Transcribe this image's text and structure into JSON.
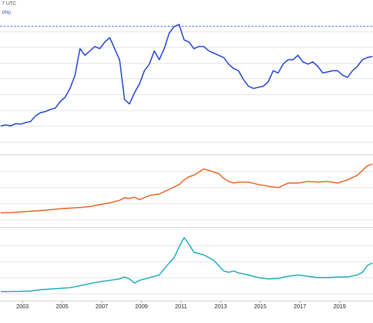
{
  "header": {
    "timestamp_fragment": "7 UTC",
    "ratio_fragment": "0%)"
  },
  "chart_data": [
    {
      "type": "line",
      "series": [
        {
          "color": "#1a3fd6",
          "x": [
            2002.0,
            2002.25,
            2002.5,
            2002.75,
            2003.0,
            2003.25,
            2003.5,
            2003.75,
            2004.0,
            2004.25,
            2004.5,
            2004.75,
            2005.0,
            2005.25,
            2005.5,
            2005.75,
            2006.0,
            2006.25,
            2006.5,
            2006.75,
            2007.0,
            2007.25,
            2007.5,
            2007.75,
            2008.0,
            2008.25,
            2008.5,
            2008.75,
            2009.0,
            2009.25,
            2009.5,
            2009.75,
            2010.0,
            2010.25,
            2010.5,
            2010.75,
            2011.0,
            2011.25,
            2011.5,
            2011.75,
            2012.0,
            2012.25,
            2012.5,
            2012.75,
            2013.0,
            2013.25,
            2013.5,
            2013.75,
            2014.0,
            2014.25,
            2014.5,
            2014.75,
            2015.0,
            2015.25,
            2015.5,
            2015.75,
            2016.0,
            2016.25,
            2016.5,
            2016.75,
            2017.0,
            2017.25,
            2017.5,
            2017.75,
            2018.0,
            2018.25,
            2018.5,
            2018.75,
            2019.0,
            2019.25,
            2019.5,
            2019.75,
            2020.0,
            2020.25,
            2020.5,
            2020.75
          ],
          "y": [
            10.0,
            10.5,
            10.0,
            11.0,
            10.8,
            11.5,
            12.0,
            14.5,
            16.0,
            16.5,
            17.5,
            18.0,
            21.0,
            23.0,
            27.0,
            33.0,
            45.0,
            42.0,
            44.0,
            46.0,
            45.0,
            48.0,
            50.0,
            45.0,
            40.0,
            22.0,
            20.0,
            25.0,
            29.0,
            35.0,
            38.0,
            44.0,
            40.0,
            45.0,
            52.0,
            55.0,
            56.0,
            49.0,
            48.0,
            45.0,
            46.0,
            46.0,
            44.0,
            43.0,
            42.0,
            41.0,
            38.0,
            36.0,
            35.0,
            31.0,
            28.0,
            27.0,
            27.5,
            28.0,
            30.0,
            35.0,
            34.0,
            38.0,
            40.0,
            40.0,
            42.0,
            39.0,
            38.0,
            39.0,
            37.0,
            34.0,
            34.5,
            35.0,
            35.0,
            33.0,
            32.0,
            35.0,
            37.0,
            40.0,
            41.0,
            41.5
          ]
        }
      ]
    },
    {
      "type": "line",
      "series": [
        {
          "color": "#e8621f",
          "x": [
            2002.0,
            2002.5,
            2003.0,
            2003.5,
            2004.0,
            2004.5,
            2005.0,
            2005.5,
            2006.0,
            2006.5,
            2007.0,
            2007.5,
            2008.0,
            2008.25,
            2008.5,
            2008.75,
            2009.0,
            2009.5,
            2010.0,
            2010.5,
            2011.0,
            2011.25,
            2011.5,
            2011.75,
            2012.0,
            2012.25,
            2012.5,
            2012.75,
            2013.0,
            2013.25,
            2013.5,
            2013.75,
            2014.0,
            2014.5,
            2015.0,
            2015.5,
            2016.0,
            2016.5,
            2017.0,
            2017.5,
            2018.0,
            2018.5,
            2019.0,
            2019.5,
            2020.0,
            2020.25,
            2020.5,
            2020.75
          ],
          "y": [
            300,
            310,
            330,
            350,
            370,
            400,
            430,
            450,
            470,
            500,
            560,
            620,
            700,
            780,
            760,
            800,
            720,
            850,
            900,
            1050,
            1200,
            1350,
            1450,
            1500,
            1600,
            1700,
            1650,
            1600,
            1550,
            1400,
            1300,
            1250,
            1280,
            1280,
            1200,
            1150,
            1100,
            1250,
            1250,
            1300,
            1280,
            1300,
            1250,
            1350,
            1500,
            1650,
            1800,
            1850
          ]
        }
      ]
    },
    {
      "type": "line",
      "series": [
        {
          "color": "#1aabbb",
          "x": [
            2002.0,
            2002.5,
            2003.0,
            2003.5,
            2004.0,
            2004.5,
            2005.0,
            2005.5,
            2006.0,
            2006.5,
            2007.0,
            2007.5,
            2008.0,
            2008.25,
            2008.5,
            2008.75,
            2009.0,
            2009.5,
            2010.0,
            2010.5,
            2010.75,
            2011.0,
            2011.25,
            2011.5,
            2011.75,
            2012.0,
            2012.25,
            2012.5,
            2012.75,
            2013.0,
            2013.25,
            2013.5,
            2013.75,
            2014.0,
            2014.5,
            2015.0,
            2015.5,
            2016.0,
            2016.5,
            2017.0,
            2017.5,
            2018.0,
            2018.5,
            2019.0,
            2019.5,
            2020.0,
            2020.25,
            2020.5,
            2020.75
          ],
          "y": [
            4.5,
            4.6,
            4.8,
            5.0,
            6.0,
            6.5,
            7.0,
            7.5,
            9.0,
            10.5,
            12.0,
            13.0,
            14.0,
            15.5,
            14.0,
            11.0,
            13.0,
            15.0,
            17.0,
            26.0,
            30.0,
            38.0,
            45.0,
            40.0,
            34.0,
            33.0,
            32.0,
            30.0,
            28.0,
            24.0,
            20.0,
            19.0,
            20.0,
            18.5,
            17.0,
            15.0,
            14.0,
            14.5,
            16.0,
            17.0,
            16.0,
            15.0,
            15.0,
            15.5,
            15.5,
            17.0,
            19.0,
            24.0,
            26.0
          ]
        }
      ]
    }
  ],
  "x_axis": {
    "ticks": [
      {
        "label": "2003",
        "value": 2003.1
      },
      {
        "label": "2005",
        "value": 2005.1
      },
      {
        "label": "2007",
        "value": 2007.1
      },
      {
        "label": "2009",
        "value": 2009.1
      },
      {
        "label": "2011",
        "value": 2011.1
      },
      {
        "label": "2013",
        "value": 2013.1
      },
      {
        "label": "2015",
        "value": 2015.1
      },
      {
        "label": "2017",
        "value": 2017.1
      },
      {
        "label": "2019",
        "value": 2019.1
      }
    ]
  }
}
